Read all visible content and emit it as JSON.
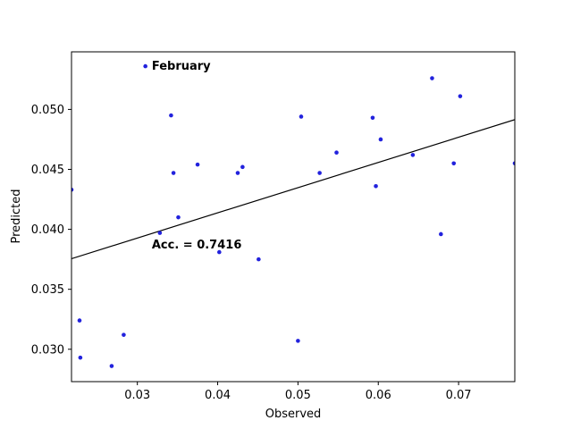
{
  "chart_data": {
    "type": "scatter",
    "title": "",
    "xlabel": "Observed",
    "ylabel": "Predicted",
    "xlim": [
      0.0218,
      0.077
    ],
    "ylim": [
      0.0273,
      0.0548
    ],
    "xticks": [
      0.03,
      0.04,
      0.05,
      0.06,
      0.07
    ],
    "xtick_labels": [
      "0.03",
      "0.04",
      "0.05",
      "0.06",
      "0.07"
    ],
    "yticks": [
      0.03,
      0.035,
      0.04,
      0.045,
      0.05
    ],
    "ytick_labels": [
      "0.030",
      "0.035",
      "0.040",
      "0.045",
      "0.050"
    ],
    "grid": false,
    "point_color": "#2222dd",
    "line_color": "#000000",
    "series": [
      {
        "name": "points",
        "x": [
          0.0218,
          0.0228,
          0.0229,
          0.0268,
          0.0283,
          0.031,
          0.0328,
          0.0342,
          0.0345,
          0.0351,
          0.0375,
          0.0402,
          0.0425,
          0.0431,
          0.0451,
          0.05,
          0.0504,
          0.0527,
          0.0548,
          0.0593,
          0.0597,
          0.0603,
          0.0643,
          0.0667,
          0.0678,
          0.0694,
          0.0702,
          0.077
        ],
        "y": [
          0.0433,
          0.0324,
          0.0293,
          0.0286,
          0.0312,
          0.0536,
          0.0397,
          0.0495,
          0.0447,
          0.041,
          0.0454,
          0.0381,
          0.0447,
          0.0452,
          0.0375,
          0.0307,
          0.0494,
          0.0447,
          0.0464,
          0.0493,
          0.0436,
          0.0475,
          0.0462,
          0.0526,
          0.0396,
          0.0455,
          0.0511,
          0.0455
        ]
      }
    ],
    "fit_line": {
      "x": [
        0.0218,
        0.077
      ],
      "y": [
        0.03755,
        0.04915
      ]
    },
    "annotations": [
      {
        "text": "February",
        "x": 0.0318,
        "y": 0.05365
      },
      {
        "text": "Acc. = 0.7416",
        "x": 0.0318,
        "y": 0.03875
      }
    ]
  }
}
